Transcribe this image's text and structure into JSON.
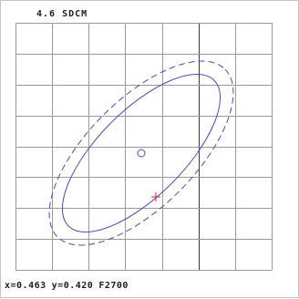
{
  "chart_data": {
    "type": "scatter",
    "title": "4.6 SDCM",
    "grid": true,
    "grid_cols": 7,
    "grid_rows": 8,
    "ellipses": [
      {
        "name": "",
        "style": "solid"
      },
      {
        "name": "",
        "style": "dashed"
      }
    ],
    "points": [
      {
        "marker": "circle"
      },
      {
        "marker": "cross"
      }
    ]
  },
  "readout": {
    "x_text": "x=0.463",
    "y_text": "y=0.420",
    "cct_text": "F2700"
  },
  "colors": {
    "grid": "#9a9a9a",
    "grid_highlight": "#3c3c3c",
    "ellipse": "#4848e0",
    "center_marker": "#4848e0",
    "measurement_marker": "#e02020",
    "text": "#202020"
  }
}
